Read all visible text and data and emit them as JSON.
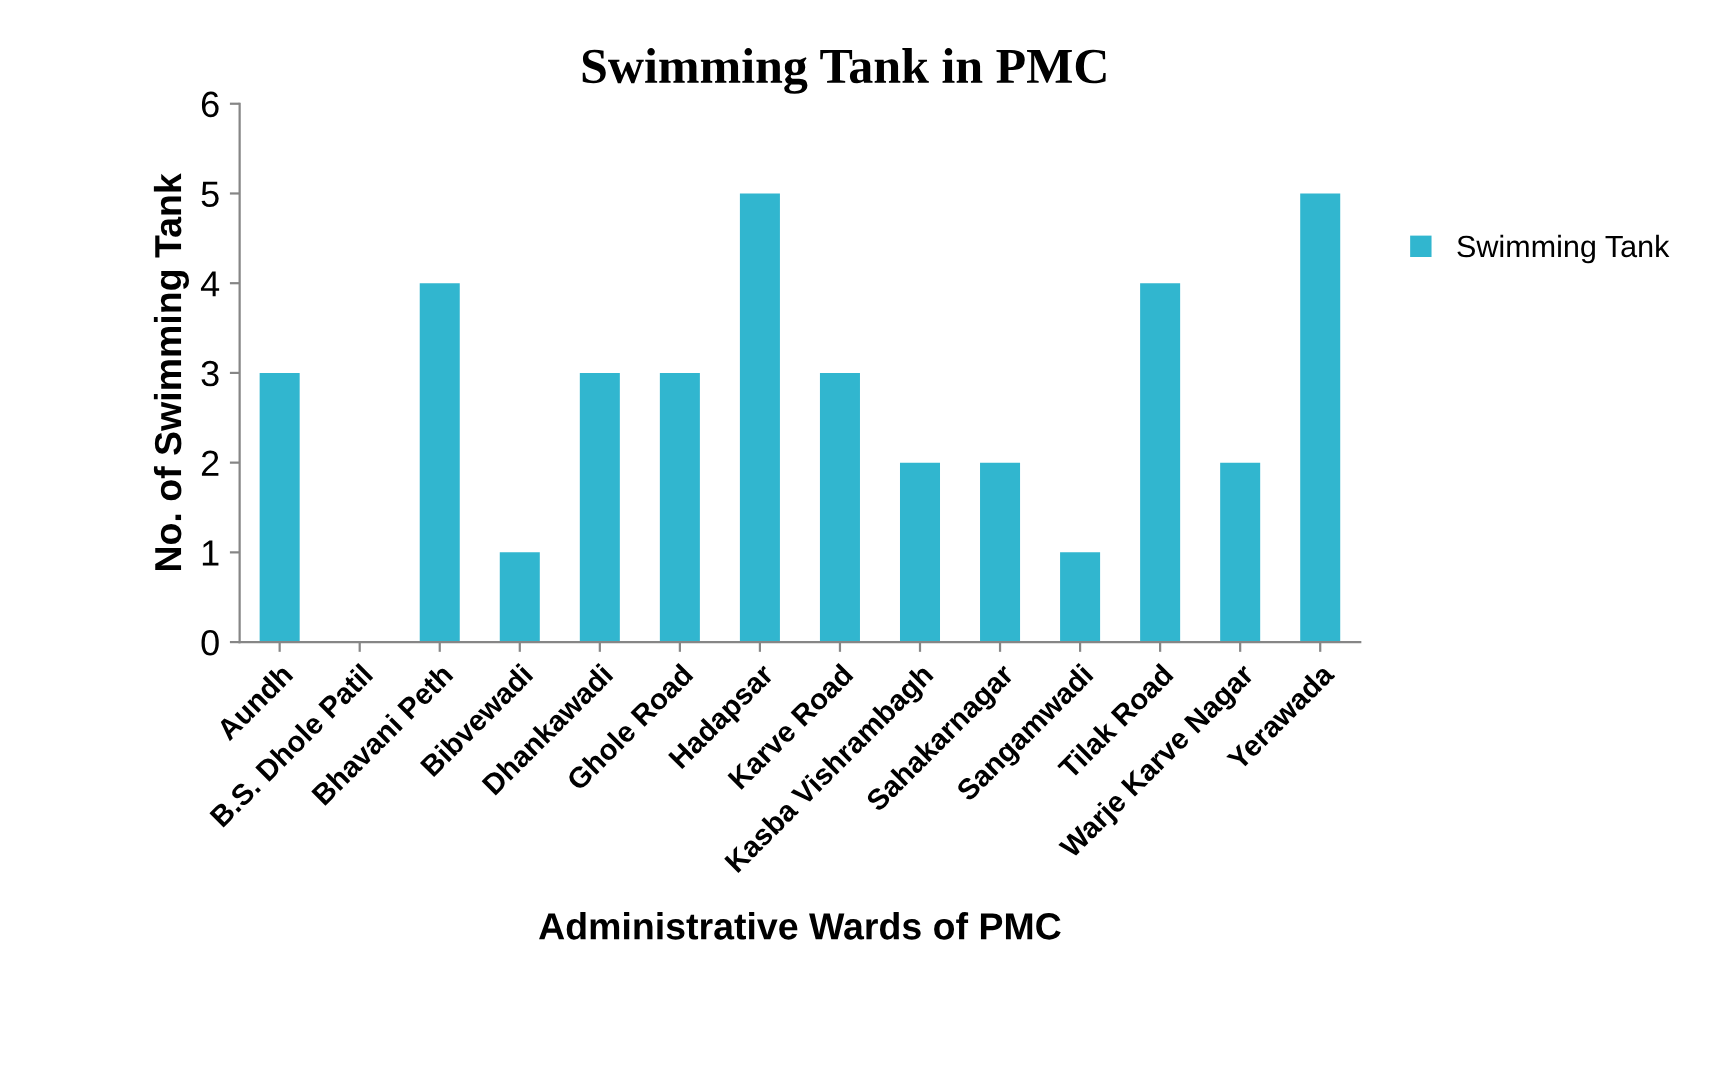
{
  "chart_data": {
    "type": "bar",
    "title": "Swimming Tank in PMC",
    "xlabel": "Administrative Wards of PMC",
    "ylabel": "No. of Swimming Tank",
    "categories": [
      "Aundh",
      "B.S. Dhole Patil",
      "Bhavani Peth",
      "Bibvewadi",
      "Dhankawadi",
      "Ghole Road",
      "Hadapsar",
      "Karve Road",
      "Kasba Vishrambagh",
      "Sahakarnagar",
      "Sangamwadi",
      "Tilak Road",
      "Warje Karve Nagar",
      "Yerawada"
    ],
    "series": [
      {
        "name": "Swimming Tank",
        "color": "#31b6cf",
        "values": [
          3,
          0,
          4,
          1,
          3,
          3,
          5,
          3,
          2,
          2,
          1,
          4,
          2,
          5
        ]
      }
    ],
    "ylim": [
      0,
      6
    ],
    "yticks": [
      0,
      1,
      2,
      3,
      4,
      5,
      6
    ],
    "grid": false,
    "legend": "right"
  }
}
